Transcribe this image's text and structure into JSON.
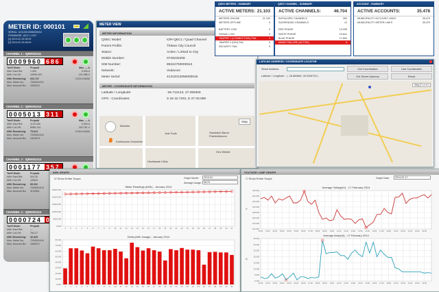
{
  "meter": {
    "id": "METER ID: 000101",
    "serial": "SERIAL: 41312013056000016",
    "firmware": "FIRMWARE: QEC1.1.007",
    "log1": "[1] 2014-02-25 08:09",
    "log2": "[2] 2014-02-25 08:09",
    "leds": [
      "T1",
      "T2",
      "E3"
    ],
    "channels": [
      {
        "name": "CHANNEL 1 : IQR0001011",
        "reading": "0009960",
        "fraction": "686",
        "tariff": "Prepaid",
        "start": "1.000",
        "cutoff": "10999.423",
        "remaining": "604.737",
        "mun_meter": "7200001011",
        "mun_acct": "1000113",
        "max": "Max. — A",
        "amps": "0.826 A",
        "volts": "231.588 V",
        "kva": "0.203 kVA/50"
      },
      {
        "name": "CHANNEL 2 : IQR0001012",
        "reading": "0005013",
        "fraction": "311",
        "tariff": "Prepaid",
        "start": "1122.000",
        "cutoff": "5085.124",
        "remaining": "75.623",
        "mun_meter": "7200001012",
        "mun_acct": "1924974",
        "max": "Max. — A",
        "amps": "0.000 A",
        "volts": "230.781 V",
        "kva": "0.000 kVA/50"
      },
      {
        "name": "CHANNEL 3 : IQR0001013",
        "reading": "0001177",
        "fraction": "357",
        "tariff": "Prepaid",
        "start": "524.30",
        "cutoff": "1258.6",
        "remaining": "85.302",
        "mun_meter": "7200001013",
        "mun_acct": "1122801",
        "max": "Max. — A",
        "amps": "",
        "volts": "",
        "kva": ""
      },
      {
        "name": "CHANNEL 4 : IQR0001014",
        "reading": "0000724",
        "fraction": "0",
        "tariff": "Prepaid",
        "start": "—",
        "cutoff": "764.27",
        "remaining": "40.825",
        "mun_meter": "7200001014",
        "mun_acct": "1545471",
        "max": "",
        "amps": "",
        "volts": "",
        "kva": ""
      }
    ],
    "labels": {
      "tariff": "Tariff Mode:",
      "start": "kWh Start Ref.",
      "cutoff": "kWh Cut-Off:",
      "remaining": "kWh Remaining:",
      "mun_meter": "Mun. Meter No:",
      "mun_acct": "Mun. Account No:",
      "relay": "Relay",
      "warn": "Warn"
    }
  },
  "meter_view": {
    "title": "METER VIEW",
    "info_title": "METER INFORMATION",
    "fields": [
      [
        "QSEC Model:",
        "IOR-QEC1 / Quad Channel"
      ],
      [
        "Parent Profile:",
        "Tlokwe City Council"
      ],
      [
        "Status:",
        "Active / Linked to City"
      ],
      [
        "Mobile Number:",
        "0726226408"
      ],
      [
        "SIM Number:",
        "89224793000913"
      ],
      [
        "Network:",
        "Vodacom"
      ],
      [
        "Meter Serial:",
        "41312013056000016"
      ]
    ],
    "coord_title": "METER : COORDINATE INFORMATION",
    "coords": [
      [
        "Latitude / Longitude:",
        "-26.712143, 27.098306"
      ],
      [
        "GPS - Coordinates:",
        "S 26 42.7291, E 27 05.898"
      ]
    ],
    "map_labels": [
      "Markets",
      "Just Tools",
      "Sandwich Baron Potchefstroom",
      "Kuhlmanns Schneider",
      "Ons Winkel",
      "Hoofstasie Clinic"
    ],
    "map_btn": "Map"
  },
  "summaries": [
    {
      "title": "QSEC METERS - SUMMARY",
      "head": "ACTIVE METERS:",
      "total": "21.103",
      "rows": [
        [
          "METERS ONLINE",
          "21.103"
        ],
        [
          "METERS OFFLINE",
          "0"
        ],
        [
          "BATTERY LOW",
          "0"
        ],
        [
          "SIGNAL LOW",
          "0"
        ],
        [
          "TAMPER 1 (CONNECTION) FAIL",
          "1"
        ],
        [
          "TAMPER 2 (DIN) FAIL",
          "0"
        ],
        [
          "SECURITY FAIL",
          "0"
        ]
      ]
    },
    {
      "title": "QSEC CHANNEL - SUMMARY",
      "head": "ACTIVE CHANNELS:",
      "total": "46.704",
      "rows": [
        [
          "INITIALIZED CHANNELS",
          "262"
        ],
        [
          "SUSPENDED CHANNELS",
          "12"
        ],
        [
          "RED PHASE",
          "13.299"
        ],
        [
          "WHITE PHASE",
          "15.841"
        ],
        [
          "BLUE PHASE",
          "17.804"
        ],
        [
          "MAINS FAILURE (ACTIVE)",
          "8"
        ]
      ]
    },
    {
      "title": "ACCOUNT - SUMMARY",
      "head": "ACTIVE ACCOUNTS:",
      "total": "35.478",
      "rows": [
        [
          "MUNICIPALITY ACCOUNT LINKS",
          "35.479"
        ],
        [
          "MUNICIPALITY METER LINKS",
          "35.479"
        ]
      ]
    }
  ],
  "locator": {
    "title": "LAT/LNG ADDRESS / COORDINATE LOCATOR",
    "street_label": "Street Address:",
    "street_value": "",
    "latlng_label": "Latitude / Longitude:",
    "latlng_value": "( -26.684669, 26.9208792 )",
    "buttons": [
      "Get Coordinates",
      "Use Coordinates",
      "Get Street Address",
      "Reset"
    ],
    "map_types": [
      "Map",
      "Satellite"
    ]
  },
  "kwh": {
    "title": "kWh GRAPH",
    "scope": "Show Entire Scope",
    "month_label": "Graph Month:",
    "month": "2014-01",
    "avg_label": "Average Usage:",
    "avg": "58.23",
    "line": {
      "title": "Meter Readings (kWh) - January 2014",
      "yticks": [
        "0.000",
        "5000.000",
        "10000.000",
        "15000.000",
        "20000.000",
        "25000.000"
      ],
      "ymax": 25000,
      "x": [
        1,
        2,
        3,
        4,
        5,
        6,
        7,
        8,
        9,
        10,
        11,
        12,
        13,
        14,
        15,
        16,
        17,
        18,
        19,
        20,
        21,
        22,
        23,
        24,
        25,
        26,
        27,
        28,
        29,
        30,
        31
      ],
      "values": [
        22100,
        22160,
        22220,
        22280,
        22340,
        22400,
        22460,
        22520,
        22580,
        22640,
        22700,
        22760,
        22820,
        22880,
        22940,
        23000,
        23060,
        23120,
        23180,
        23240,
        23300,
        23360,
        23420,
        23480,
        23540,
        23600,
        23660,
        23720,
        23780,
        23840,
        23900
      ],
      "color": "#d33"
    },
    "bar": {
      "title": "Delta (kWh Usage) - January 2014",
      "yticks": [
        "0.000",
        "10.000",
        "20.000",
        "30.000",
        "40.000",
        "50.000",
        "60.000",
        "70.000",
        "80.000"
      ],
      "ymax": 80000,
      "values": [
        29000,
        65000,
        65000,
        61000,
        56000,
        68000,
        65000,
        61500,
        61500,
        64000,
        59000,
        47000,
        75000,
        67000,
        61000,
        65000,
        61500,
        59000,
        43000,
        63500,
        61500,
        65500,
        62500,
        62500,
        61500,
        35500,
        58000,
        58500,
        57500,
        57500,
        53000
      ],
      "color": "#e01010"
    }
  },
  "va": {
    "title": "VOLTAGE / AMP GRAPH",
    "scope": "Show Entire Scope",
    "date_label": "Graph Date:",
    "date": "2014-02-17",
    "volt": {
      "title": "Average Voltage(V) - 17 February 2014",
      "ylabel": "V",
      "yticks": [
        "222.000",
        "224.000",
        "226.000",
        "228.000",
        "230.000",
        "232.000",
        "234.000",
        "236.000"
      ],
      "ymin": 222,
      "ymax": 236,
      "color": "#c33",
      "values": [
        233,
        233.5,
        232.5,
        234,
        231.5,
        233,
        232.5,
        233.3,
        234,
        231.5,
        231.5,
        232.5,
        235.8,
        232,
        231,
        232.5,
        228,
        225.5,
        226,
        225,
        225.3,
        229,
        226.8,
        225.5,
        225.7,
        225.5,
        224,
        225.3,
        225.7,
        222.5,
        223.5,
        224.5,
        227.3,
        227.3,
        229.5,
        228,
        227.5,
        233.5,
        233.7,
        235,
        231.3,
        232.8,
        233.3,
        233.3,
        234,
        234.5,
        233.3,
        234.5
      ]
    },
    "amp": {
      "title": "Average Amps(A) - 17 February 2014",
      "ylabel": "A",
      "yticks": [
        "0.000",
        "5.000",
        "10.000",
        "15.000",
        "20.000",
        "25.000",
        "30.000",
        "35.000"
      ],
      "ymin": 0,
      "ymax": 35,
      "color": "#2a9fb8",
      "values": [
        3.5,
        2,
        2.5,
        6,
        2.5,
        3.5,
        6,
        1,
        3.5,
        6.5,
        1,
        3.5,
        3.5,
        2,
        3,
        2.5,
        3.5,
        33.5,
        22.5,
        23.5,
        23.5,
        24,
        21,
        21,
        18,
        23,
        25.5,
        22,
        20,
        32,
        23,
        32,
        20,
        25.5,
        22,
        19.5,
        19.5,
        11,
        10,
        7.5,
        7.5,
        7.5,
        7.5,
        7.5,
        7.5,
        6.5,
        7,
        6.5
      ]
    },
    "xticks": [
      "00:00",
      "01:00",
      "02:00",
      "03:00",
      "04:00",
      "05:00",
      "06:00",
      "07:00",
      "08:00",
      "09:00",
      "10:00",
      "11:00",
      "12:00",
      "13:00",
      "14:00",
      "15:00",
      "16:00",
      "17:00",
      "18:00",
      "19:00",
      "20:00",
      "21:00",
      "22:00",
      "23:00"
    ]
  }
}
